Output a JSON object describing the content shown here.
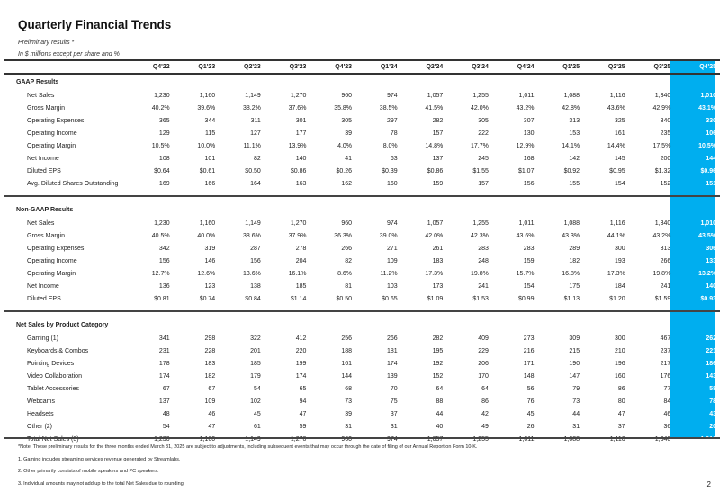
{
  "title": "Quarterly Financial Trends",
  "subtitle1": "Preliminary results *",
  "subtitle2": "In $ millions except per share and %",
  "highlight_color": "#00AEEF",
  "columns": [
    "Q4'22",
    "Q1'23",
    "Q2'23",
    "Q3'23",
    "Q4'23",
    "Q1'24",
    "Q2'24",
    "Q3'24",
    "Q4'24",
    "Q1'25",
    "Q2'25",
    "Q3'25",
    "Q4'25"
  ],
  "sections": [
    {
      "title": "GAAP Results",
      "rows": [
        {
          "label": "Net Sales",
          "values": [
            "1,230",
            "1,160",
            "1,149",
            "1,270",
            "960",
            "974",
            "1,057",
            "1,255",
            "1,011",
            "1,088",
            "1,116",
            "1,340",
            "1,010"
          ]
        },
        {
          "label": "Gross Margin",
          "values": [
            "40.2%",
            "39.6%",
            "38.2%",
            "37.6%",
            "35.8%",
            "38.5%",
            "41.5%",
            "42.0%",
            "43.2%",
            "42.8%",
            "43.6%",
            "42.9%",
            "43.1%"
          ]
        },
        {
          "label": "Operating Expenses",
          "values": [
            "365",
            "344",
            "311",
            "301",
            "305",
            "297",
            "282",
            "305",
            "307",
            "313",
            "325",
            "340",
            "330"
          ]
        },
        {
          "label": "Operating Income",
          "values": [
            "129",
            "115",
            "127",
            "177",
            "39",
            "78",
            "157",
            "222",
            "130",
            "153",
            "161",
            "235",
            "106"
          ]
        },
        {
          "label": "Operating Margin",
          "values": [
            "10.5%",
            "10.0%",
            "11.1%",
            "13.9%",
            "4.0%",
            "8.0%",
            "14.8%",
            "17.7%",
            "12.9%",
            "14.1%",
            "14.4%",
            "17.5%",
            "10.5%"
          ]
        },
        {
          "label": "Net Income",
          "values": [
            "108",
            "101",
            "82",
            "140",
            "41",
            "63",
            "137",
            "245",
            "168",
            "142",
            "145",
            "200",
            "144"
          ]
        },
        {
          "label": "Diluted EPS",
          "values": [
            "$0.64",
            "$0.61",
            "$0.50",
            "$0.86",
            "$0.26",
            "$0.39",
            "$0.86",
            "$1.55",
            "$1.07",
            "$0.92",
            "$0.95",
            "$1.32",
            "$0.96"
          ]
        },
        {
          "label": "Avg. Diluted Shares Outstanding",
          "values": [
            "169",
            "166",
            "164",
            "163",
            "162",
            "160",
            "159",
            "157",
            "156",
            "155",
            "154",
            "152",
            "151"
          ]
        }
      ]
    },
    {
      "title": "Non-GAAP Results",
      "rows": [
        {
          "label": "Net Sales",
          "values": [
            "1,230",
            "1,160",
            "1,149",
            "1,270",
            "960",
            "974",
            "1,057",
            "1,255",
            "1,011",
            "1,088",
            "1,116",
            "1,340",
            "1,010"
          ]
        },
        {
          "label": "Gross Margin",
          "values": [
            "40.5%",
            "40.0%",
            "38.6%",
            "37.9%",
            "36.3%",
            "39.0%",
            "42.0%",
            "42.3%",
            "43.6%",
            "43.3%",
            "44.1%",
            "43.2%",
            "43.5%"
          ]
        },
        {
          "label": "Operating Expenses",
          "values": [
            "342",
            "319",
            "287",
            "278",
            "266",
            "271",
            "261",
            "283",
            "283",
            "289",
            "300",
            "313",
            "306"
          ]
        },
        {
          "label": "Operating Income",
          "values": [
            "156",
            "146",
            "156",
            "204",
            "82",
            "109",
            "183",
            "248",
            "159",
            "182",
            "193",
            "266",
            "133"
          ]
        },
        {
          "label": "Operating Margin",
          "values": [
            "12.7%",
            "12.6%",
            "13.6%",
            "16.1%",
            "8.6%",
            "11.2%",
            "17.3%",
            "19.8%",
            "15.7%",
            "16.8%",
            "17.3%",
            "19.8%",
            "13.2%"
          ]
        },
        {
          "label": "Net Income",
          "values": [
            "136",
            "123",
            "138",
            "185",
            "81",
            "103",
            "173",
            "241",
            "154",
            "175",
            "184",
            "241",
            "140"
          ]
        },
        {
          "label": "Diluted EPS",
          "values": [
            "$0.81",
            "$0.74",
            "$0.84",
            "$1.14",
            "$0.50",
            "$0.65",
            "$1.09",
            "$1.53",
            "$0.99",
            "$1.13",
            "$1.20",
            "$1.59",
            "$0.93"
          ]
        }
      ]
    },
    {
      "title": "Net Sales by Product Category",
      "rows": [
        {
          "label": "Gaming (1)",
          "values": [
            "341",
            "298",
            "322",
            "412",
            "256",
            "266",
            "282",
            "409",
            "273",
            "309",
            "300",
            "467",
            "262"
          ]
        },
        {
          "label": "Keyboards & Combos",
          "values": [
            "231",
            "228",
            "201",
            "220",
            "188",
            "181",
            "195",
            "229",
            "216",
            "215",
            "210",
            "237",
            "221"
          ]
        },
        {
          "label": "Pointing Devices",
          "values": [
            "178",
            "183",
            "185",
            "199",
            "161",
            "174",
            "192",
            "206",
            "171",
            "190",
            "196",
            "217",
            "186"
          ]
        },
        {
          "label": "Video Collaboration",
          "values": [
            "174",
            "182",
            "179",
            "174",
            "144",
            "139",
            "152",
            "170",
            "148",
            "147",
            "160",
            "176",
            "143"
          ]
        },
        {
          "label": "Tablet Accessories",
          "values": [
            "67",
            "67",
            "54",
            "65",
            "68",
            "70",
            "64",
            "64",
            "56",
            "79",
            "86",
            "77",
            "58"
          ]
        },
        {
          "label": "Webcams",
          "values": [
            "137",
            "109",
            "102",
            "94",
            "73",
            "75",
            "88",
            "86",
            "76",
            "73",
            "80",
            "84",
            "78"
          ]
        },
        {
          "label": "Headsets",
          "values": [
            "48",
            "46",
            "45",
            "47",
            "39",
            "37",
            "44",
            "42",
            "45",
            "44",
            "47",
            "46",
            "43"
          ]
        },
        {
          "label": "Other (2)",
          "values": [
            "54",
            "47",
            "61",
            "59",
            "31",
            "31",
            "40",
            "49",
            "26",
            "31",
            "37",
            "36",
            "20"
          ]
        },
        {
          "label": "Total Net Sales (3)",
          "values": [
            "1,230",
            "1,160",
            "1,149",
            "1,270",
            "960",
            "974",
            "1,057",
            "1,255",
            "1,011",
            "1,088",
            "1,116",
            "1,340",
            "1,010"
          ]
        }
      ]
    }
  ],
  "footnotes": [
    "*Note: These preliminary results for the three months ended March 31, 2025 are subject to adjustments, including subsequent events that may occur through the date of filing of our Annual Report on Form 10-K.",
    "1. Gaming includes streaming services revenue generated by Streamlabs.",
    "2. Other primarily consists of mobile speakers and PC speakers.",
    "3. Individual amounts may not add up to the total Net Sales due to rounding."
  ],
  "page_number": "2"
}
